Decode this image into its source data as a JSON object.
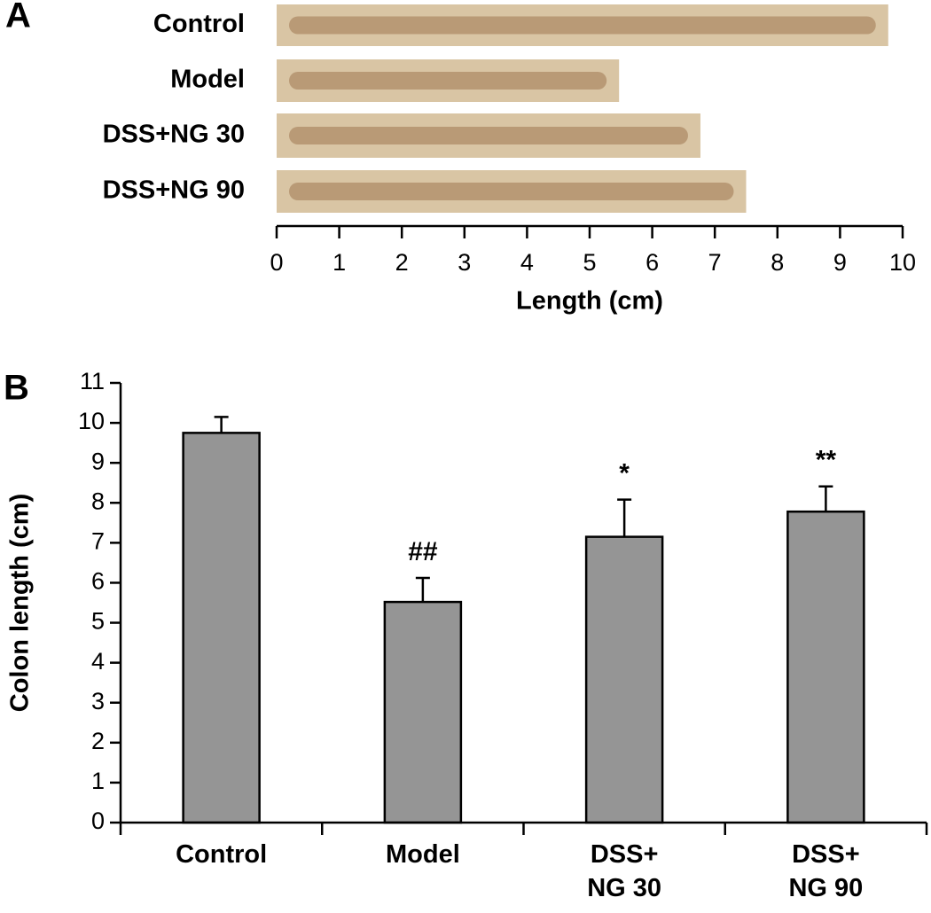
{
  "chart_data": [
    {
      "type": "strip",
      "panel_label": "A",
      "categories": [
        "Control",
        "Model",
        "DSS+NG 30",
        "DSS+NG 90"
      ],
      "values": [
        9.77,
        5.47,
        6.77,
        7.5
      ],
      "color": "#b08f6a",
      "xlabel": "Length (cm)",
      "xlim": [
        0,
        10
      ],
      "xticks": [
        0,
        1,
        2,
        3,
        4,
        5,
        6,
        7,
        8,
        9,
        10
      ]
    },
    {
      "type": "bar",
      "panel_label": "B",
      "categories": [
        "Control",
        "Model",
        "DSS+\nNG 30",
        "DSS+\nNG 90"
      ],
      "values": [
        9.75,
        5.52,
        7.15,
        7.78
      ],
      "errors": [
        0.4,
        0.6,
        0.93,
        0.63
      ],
      "annotations": [
        null,
        "##",
        "*",
        "**"
      ],
      "color": "#959595",
      "ylabel": "Colon length (cm)",
      "ylim": [
        0,
        11
      ],
      "yticks": [
        0,
        1,
        2,
        3,
        4,
        5,
        6,
        7,
        8,
        9,
        10,
        11
      ]
    }
  ]
}
